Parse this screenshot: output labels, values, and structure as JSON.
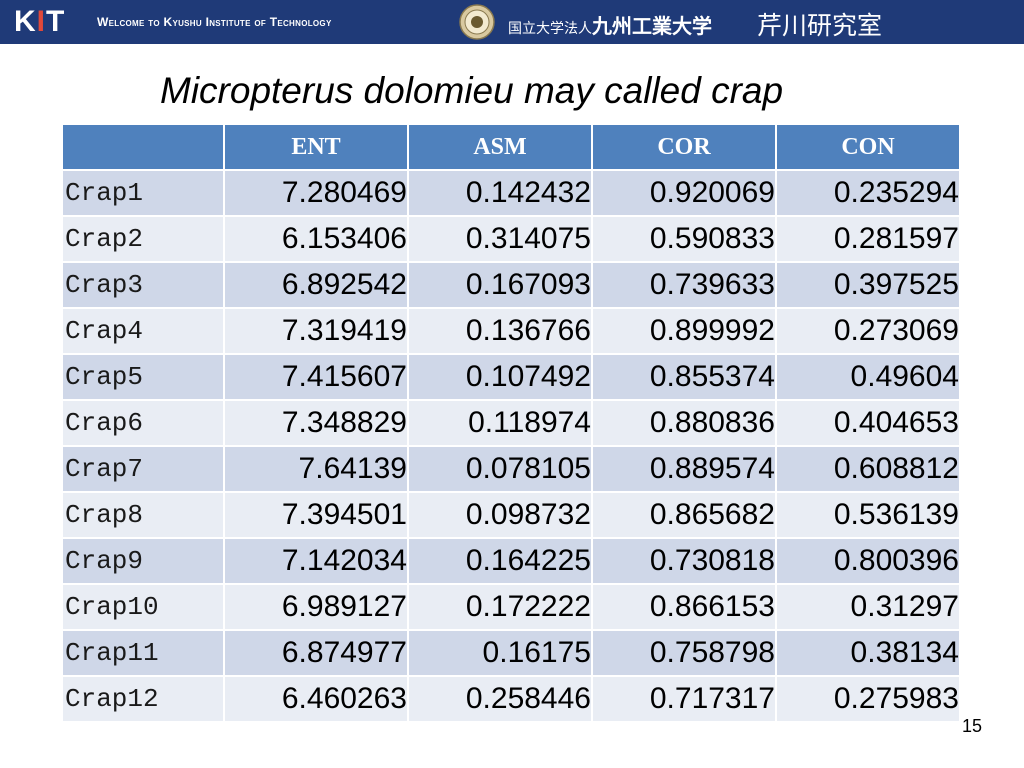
{
  "header": {
    "logo_k": "K",
    "logo_i": "I",
    "logo_t": "T",
    "welcome_text": "Welcome to Kyushu Institute of Technology",
    "university_prefix": "国立大学法人",
    "university_name": "九州工業大学",
    "lab_name": "芹川研究室",
    "colors": {
      "bar": "#1f3a78",
      "logo_accent": "#e0483a"
    }
  },
  "slide": {
    "title": "Micropterus dolomieu may called crap",
    "page_number": "15"
  },
  "table": {
    "columns": [
      "",
      "ENT",
      "ASM",
      "COR",
      "CON"
    ],
    "rows": [
      {
        "label": "Crap1",
        "values": [
          "7.280469",
          "0.142432",
          "0.920069",
          "0.235294"
        ]
      },
      {
        "label": "Crap2",
        "values": [
          "6.153406",
          "0.314075",
          "0.590833",
          "0.281597"
        ]
      },
      {
        "label": "Crap3",
        "values": [
          "6.892542",
          "0.167093",
          "0.739633",
          "0.397525"
        ]
      },
      {
        "label": "Crap4",
        "values": [
          "7.319419",
          "0.136766",
          "0.899992",
          "0.273069"
        ]
      },
      {
        "label": "Crap5",
        "values": [
          "7.415607",
          "0.107492",
          "0.855374",
          "0.49604"
        ]
      },
      {
        "label": "Crap6",
        "values": [
          "7.348829",
          "0.118974",
          "0.880836",
          "0.404653"
        ]
      },
      {
        "label": "Crap7",
        "values": [
          "7.64139",
          "0.078105",
          "0.889574",
          "0.608812"
        ]
      },
      {
        "label": "Crap8",
        "values": [
          "7.394501",
          "0.098732",
          "0.865682",
          "0.536139"
        ]
      },
      {
        "label": "Crap9",
        "values": [
          "7.142034",
          "0.164225",
          "0.730818",
          "0.800396"
        ]
      },
      {
        "label": "Crap10",
        "values": [
          "6.989127",
          "0.172222",
          "0.866153",
          "0.31297"
        ]
      },
      {
        "label": "Crap11",
        "values": [
          "6.874977",
          "0.16175",
          "0.758798",
          "0.38134"
        ]
      },
      {
        "label": "Crap12",
        "values": [
          "6.460263",
          "0.258446",
          "0.717317",
          "0.275983"
        ]
      }
    ]
  }
}
